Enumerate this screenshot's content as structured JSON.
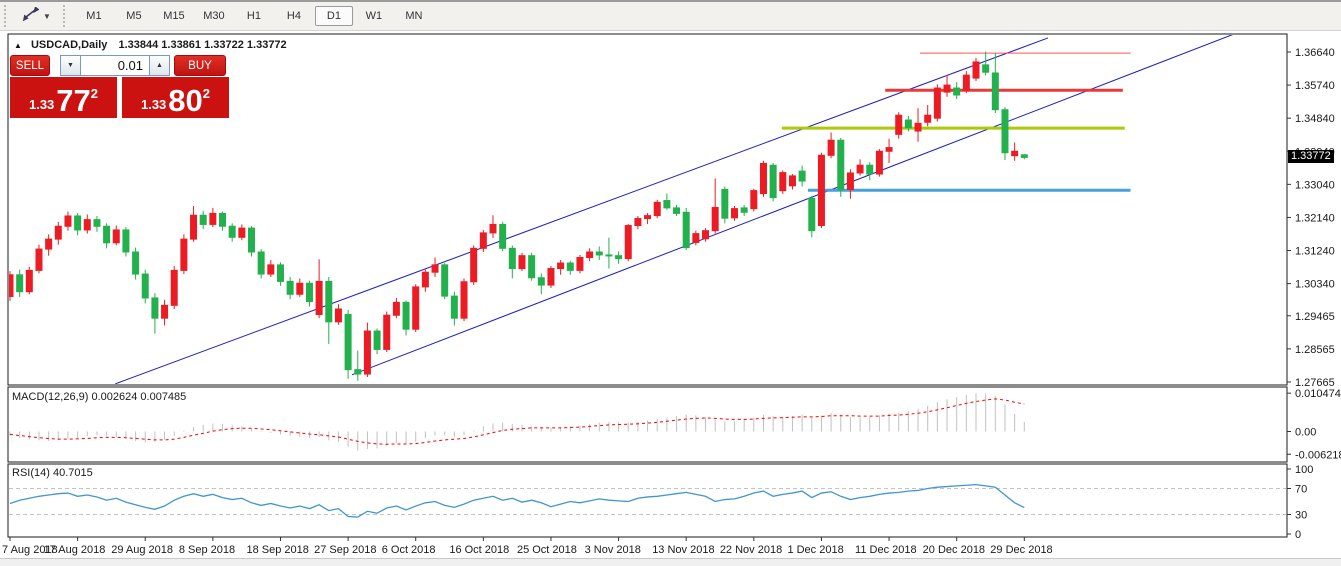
{
  "toolbar": {
    "tool_icon": "diagonal-arrows-icon",
    "dropdown_caret": "▾",
    "timeframes": [
      {
        "label": "M1",
        "selected": false
      },
      {
        "label": "M5",
        "selected": false
      },
      {
        "label": "M15",
        "selected": false
      },
      {
        "label": "M30",
        "selected": false
      },
      {
        "label": "H1",
        "selected": false
      },
      {
        "label": "H4",
        "selected": false
      },
      {
        "label": "D1",
        "selected": true
      },
      {
        "label": "W1",
        "selected": false
      },
      {
        "label": "MN",
        "selected": false
      }
    ]
  },
  "chart_header": {
    "collapse_triangle": "▲",
    "symbol": "USDCAD,Daily",
    "ohlc_text": "1.33844 1.33861 1.33722 1.33772",
    "open": "1.33844",
    "high": "1.33861",
    "low": "1.33722",
    "close": "1.33772"
  },
  "trade_panel": {
    "sell_label": "SELL",
    "buy_label": "BUY",
    "volume": "0.01",
    "spin_down_icon": "▼",
    "spin_up_icon": "▲",
    "sell_price_prefix": "1.33",
    "sell_price_big": "77",
    "sell_price_sup": "2",
    "buy_price_prefix": "1.33",
    "buy_price_big": "80",
    "buy_price_sup": "2",
    "button_color": "#cc1111"
  },
  "current_price_tag": "1.33772",
  "indicator_labels": {
    "macd": "MACD(12,26,9) 0.002624 0.007485",
    "rsi": "RSI(14) 40.7015"
  },
  "colors": {
    "bull": "#ec1c24",
    "bear": "#23b14d",
    "channel": "#1a1ac8",
    "hline_thin_red": "#ff5050",
    "hline_thick_red": "#e83a3a",
    "hline_yellow": "#aec80a",
    "hline_blue": "#46a0dc",
    "macd_hist": "#c0c0c0",
    "macd_signal": "#ff0000",
    "rsi_line": "#4195d1",
    "axis_text": "#1a1a1a",
    "panel_border": "#1a1a1a"
  },
  "chart_data": [
    {
      "type": "candlestick",
      "title": "USDCAD Daily",
      "y_ticks": [
        "1.36640",
        "1.35740",
        "1.34840",
        "1.33940",
        "1.33040",
        "1.32140",
        "1.31240",
        "1.30340",
        "1.29465",
        "1.28565",
        "1.27665"
      ],
      "ylim": [
        1.275,
        1.372
      ],
      "x_tick_labels": [
        "7 Aug 2018",
        "17 Aug 2018",
        "29 Aug 2018",
        "8 Sep 2018",
        "18 Sep 2018",
        "27 Sep 2018",
        "6 Oct 2018",
        "16 Oct 2018",
        "25 Oct 2018",
        "3 Nov 2018",
        "13 Nov 2018",
        "22 Nov 2018",
        "1 Dec 2018",
        "11 Dec 2018",
        "20 Dec 2018",
        "29 Dec 2018"
      ],
      "x_tick_bars": [
        0,
        7,
        14,
        21,
        28,
        35,
        42,
        49,
        56,
        63,
        70,
        77,
        84,
        91,
        98,
        105
      ],
      "candles": [
        [
          1.2999,
          1.3068,
          1.2987,
          1.3058
        ],
        [
          1.3058,
          1.3072,
          1.2998,
          1.3012
        ],
        [
          1.3012,
          1.308,
          1.3005,
          1.307
        ],
        [
          1.307,
          1.314,
          1.3062,
          1.3128
        ],
        [
          1.3128,
          1.3168,
          1.311,
          1.3155
        ],
        [
          1.3155,
          1.3202,
          1.314,
          1.319
        ],
        [
          1.319,
          1.323,
          1.3178,
          1.3218
        ],
        [
          1.3218,
          1.3226,
          1.3165,
          1.318
        ],
        [
          1.318,
          1.3222,
          1.317,
          1.3208
        ],
        [
          1.3208,
          1.3218,
          1.3175,
          1.319
        ],
        [
          1.319,
          1.3198,
          1.313,
          1.3145
        ],
        [
          1.3145,
          1.3192,
          1.3138,
          1.318
        ],
        [
          1.318,
          1.3188,
          1.3108,
          1.312
        ],
        [
          1.312,
          1.3132,
          1.3045,
          1.306
        ],
        [
          1.306,
          1.3072,
          1.298,
          1.2995
        ],
        [
          1.2995,
          1.3008,
          1.2898,
          1.294
        ],
        [
          1.294,
          1.299,
          1.292,
          1.2975
        ],
        [
          1.2975,
          1.3082,
          1.2965,
          1.307
        ],
        [
          1.307,
          1.3168,
          1.306,
          1.3155
        ],
        [
          1.3155,
          1.3245,
          1.3148,
          1.322
        ],
        [
          1.322,
          1.3232,
          1.3182,
          1.3195
        ],
        [
          1.3195,
          1.324,
          1.3188,
          1.3225
        ],
        [
          1.3225,
          1.323,
          1.3178,
          1.319
        ],
        [
          1.319,
          1.3198,
          1.3148,
          1.316
        ],
        [
          1.316,
          1.3195,
          1.3152,
          1.3185
        ],
        [
          1.3185,
          1.319,
          1.3108,
          1.312
        ],
        [
          1.312,
          1.3128,
          1.3048,
          1.306
        ],
        [
          1.306,
          1.3098,
          1.3052,
          1.3085
        ],
        [
          1.3085,
          1.3092,
          1.3028,
          1.304
        ],
        [
          1.304,
          1.3052,
          1.2992,
          1.3005
        ],
        [
          1.3005,
          1.3048,
          1.2998,
          1.3035
        ],
        [
          1.3035,
          1.3042,
          1.2972,
          1.2985
        ],
        [
          1.295,
          1.31,
          1.294,
          1.304
        ],
        [
          1.304,
          1.3052,
          1.287,
          1.293
        ],
        [
          1.293,
          1.2978,
          1.2922,
          1.2965
        ],
        [
          1.295,
          1.2962,
          1.2775,
          1.28
        ],
        [
          1.28,
          1.2852,
          1.277,
          1.2788
        ],
        [
          1.2788,
          1.2928,
          1.278,
          1.2905
        ],
        [
          1.2905,
          1.2912,
          1.2842,
          1.2855
        ],
        [
          1.2855,
          1.2958,
          1.2848,
          1.2948
        ],
        [
          1.2948,
          1.2995,
          1.294,
          1.2983
        ],
        [
          1.2983,
          1.2988,
          1.2893,
          1.291
        ],
        [
          1.291,
          1.3032,
          1.2902,
          1.3025
        ],
        [
          1.3025,
          1.3072,
          1.3012,
          1.3065
        ],
        [
          1.3065,
          1.3105,
          1.3052,
          1.3085
        ],
        [
          1.3085,
          1.309,
          1.2992,
          1.3
        ],
        [
          1.3,
          1.3012,
          1.292,
          1.294
        ],
        [
          1.294,
          1.3048,
          1.2932,
          1.3039
        ],
        [
          1.3039,
          1.3138,
          1.303,
          1.313
        ],
        [
          1.313,
          1.318,
          1.312,
          1.3172
        ],
        [
          1.3172,
          1.322,
          1.3158,
          1.3195
        ],
        [
          1.3195,
          1.3202,
          1.3122,
          1.313
        ],
        [
          1.313,
          1.3138,
          1.3048,
          1.3075
        ],
        [
          1.3075,
          1.3118,
          1.3068,
          1.311
        ],
        [
          1.311,
          1.3118,
          1.3042,
          1.305
        ],
        [
          1.305,
          1.3062,
          1.3005,
          1.303
        ],
        [
          1.303,
          1.3082,
          1.3022,
          1.3075
        ],
        [
          1.3075,
          1.3098,
          1.3058,
          1.309
        ],
        [
          1.309,
          1.3096,
          1.3058,
          1.307
        ],
        [
          1.307,
          1.3112,
          1.3062,
          1.3105
        ],
        [
          1.3105,
          1.313,
          1.3095,
          1.312
        ],
        [
          1.312,
          1.3135,
          1.3098,
          1.3112
        ],
        [
          1.3112,
          1.3159,
          1.3075,
          1.311
        ],
        [
          1.311,
          1.3122,
          1.3088,
          1.3102
        ],
        [
          1.3102,
          1.3196,
          1.3095,
          1.3192
        ],
        [
          1.3192,
          1.3218,
          1.3182,
          1.3211
        ],
        [
          1.3211,
          1.3226,
          1.3196,
          1.3219
        ],
        [
          1.3219,
          1.3262,
          1.3212,
          1.3255
        ],
        [
          1.326,
          1.3279,
          1.3235,
          1.324
        ],
        [
          1.324,
          1.3248,
          1.3218,
          1.3225
        ],
        [
          1.3228,
          1.324,
          1.3125,
          1.3132
        ],
        [
          1.3146,
          1.3178,
          1.3138,
          1.317
        ],
        [
          1.3156,
          1.3185,
          1.3148,
          1.3178
        ],
        [
          1.3178,
          1.332,
          1.317,
          1.3241
        ],
        [
          1.329,
          1.3298,
          1.3198,
          1.3212
        ],
        [
          1.3213,
          1.3245,
          1.3205,
          1.3238
        ],
        [
          1.324,
          1.3248,
          1.3218,
          1.3228
        ],
        [
          1.3238,
          1.3292,
          1.323,
          1.3287
        ],
        [
          1.3279,
          1.3368,
          1.327,
          1.3361
        ],
        [
          1.3356,
          1.3362,
          1.3258,
          1.3268
        ],
        [
          1.3287,
          1.3342,
          1.3278,
          1.3336
        ],
        [
          1.33,
          1.3332,
          1.329,
          1.3327
        ],
        [
          1.334,
          1.3355,
          1.3298,
          1.3313
        ],
        [
          1.3266,
          1.3272,
          1.316,
          1.3178
        ],
        [
          1.3192,
          1.339,
          1.3185,
          1.3383
        ],
        [
          1.3383,
          1.3445,
          1.3375,
          1.3424
        ],
        [
          1.3424,
          1.343,
          1.327,
          1.329
        ],
        [
          1.329,
          1.3345,
          1.3265,
          1.3335
        ],
        [
          1.3335,
          1.3372,
          1.3328,
          1.3356
        ],
        [
          1.3356,
          1.3364,
          1.3315,
          1.3332
        ],
        [
          1.3332,
          1.34,
          1.3325,
          1.3394
        ],
        [
          1.3394,
          1.3428,
          1.3362,
          1.3404
        ],
        [
          1.344,
          1.35,
          1.3428,
          1.3492
        ],
        [
          1.3479,
          1.349,
          1.3448,
          1.3458
        ],
        [
          1.3449,
          1.3511,
          1.342,
          1.347
        ],
        [
          1.3473,
          1.352,
          1.3462,
          1.3492
        ],
        [
          1.3484,
          1.3576,
          1.3475,
          1.3566
        ],
        [
          1.3555,
          1.3601,
          1.3542,
          1.3574
        ],
        [
          1.3566,
          1.3582,
          1.3536,
          1.3547
        ],
        [
          1.356,
          1.3612,
          1.3552,
          1.3601
        ],
        [
          1.3593,
          1.3648,
          1.3585,
          1.3637
        ],
        [
          1.3629,
          1.3665,
          1.36,
          1.3609
        ],
        [
          1.3607,
          1.366,
          1.3498,
          1.3507
        ],
        [
          1.3507,
          1.3514,
          1.337,
          1.339
        ],
        [
          1.3382,
          1.3418,
          1.3368,
          1.3394
        ],
        [
          1.33844,
          1.33861,
          1.33722,
          1.33772
        ]
      ],
      "overlays": {
        "trendlines": [
          {
            "name": "channel-upper",
            "bar1": 10.9,
            "price1": 1.27614,
            "bar2": 107.45,
            "price2": 1.37022
          },
          {
            "name": "channel-lower",
            "bar1": 35.4,
            "price1": 1.27859,
            "bar2": 127.0,
            "price2": 1.37158
          }
        ],
        "hlines": [
          {
            "name": "resistance-thin-red",
            "price": 1.3661,
            "bar1": 94.2,
            "bar2": 116.0,
            "color_key": "hline_thin_red",
            "width": 1
          },
          {
            "name": "resistance-thick-red",
            "price": 1.356,
            "bar1": 90.6,
            "bar2": 115.2,
            "color_key": "hline_thick_red",
            "width": 3
          },
          {
            "name": "support-yellow",
            "price": 1.3457,
            "bar1": 79.9,
            "bar2": 115.4,
            "color_key": "hline_yellow",
            "width": 3
          },
          {
            "name": "support-blue",
            "price": 1.3288,
            "bar1": 82.6,
            "bar2": 116.0,
            "color_key": "hline_blue",
            "width": 3
          }
        ]
      }
    },
    {
      "type": "bar",
      "title": "MACD(12,26,9)",
      "current_macd": 0.002624,
      "current_signal": 0.007485,
      "y_ticks": [
        "0.010474",
        "0.00",
        "-0.006218"
      ],
      "y_tick_values": [
        0.010474,
        0.0,
        -0.006218
      ],
      "hist": [
        -0.0012,
        -0.0018,
        -0.0022,
        -0.0024,
        -0.0026,
        -0.0024,
        -0.002,
        -0.0018,
        -0.0013,
        -0.001,
        -0.0012,
        -0.0016,
        -0.002,
        -0.0026,
        -0.003,
        -0.0028,
        -0.0022,
        -0.0012,
        0.0002,
        0.0012,
        0.0018,
        0.0022,
        0.0021,
        0.0018,
        0.0014,
        0.0008,
        0.0002,
        -0.0004,
        -0.0008,
        -0.0012,
        -0.0014,
        -0.0018,
        -0.0016,
        -0.0024,
        -0.0028,
        -0.0042,
        -0.0052,
        -0.0048,
        -0.0046,
        -0.0038,
        -0.0032,
        -0.0034,
        -0.0028,
        -0.0018,
        -0.001,
        -0.001,
        -0.0014,
        -0.001,
        0.0002,
        0.0014,
        0.0022,
        0.0024,
        0.002,
        0.0018,
        0.0014,
        0.0012,
        0.001,
        0.0012,
        0.0014,
        0.0016,
        0.002,
        0.0024,
        0.0026,
        0.0026,
        0.0024,
        0.0026,
        0.003,
        0.0034,
        0.0038,
        0.0042,
        0.0046,
        0.0044,
        0.004,
        0.0032,
        0.0028,
        0.0028,
        0.0032,
        0.0038,
        0.0046,
        0.0042,
        0.004,
        0.0042,
        0.0046,
        0.0038,
        0.0044,
        0.005,
        0.0046,
        0.004,
        0.0038,
        0.004,
        0.0044,
        0.005,
        0.0052,
        0.0056,
        0.0062,
        0.007,
        0.008,
        0.0088,
        0.0094,
        0.01,
        0.0104,
        0.0103,
        0.0098,
        0.0074,
        0.0048,
        0.0026
      ],
      "signal": [
        -0.0008,
        -0.0011,
        -0.0014,
        -0.0017,
        -0.0019,
        -0.0021,
        -0.0021,
        -0.002,
        -0.0019,
        -0.0017,
        -0.0016,
        -0.0016,
        -0.0017,
        -0.0019,
        -0.0021,
        -0.0023,
        -0.0023,
        -0.0021,
        -0.0016,
        -0.001,
        -0.0005,
        0.0001,
        0.0005,
        0.0008,
        0.0009,
        0.0009,
        0.0007,
        0.0005,
        0.0002,
        -0.0001,
        -0.0004,
        -0.0007,
        -0.0009,
        -0.0012,
        -0.0015,
        -0.0021,
        -0.0027,
        -0.0031,
        -0.0034,
        -0.0035,
        -0.0034,
        -0.0034,
        -0.0033,
        -0.003,
        -0.0026,
        -0.0023,
        -0.0021,
        -0.0019,
        -0.0015,
        -0.0009,
        -0.0003,
        0.0003,
        0.0006,
        0.0008,
        0.001,
        0.001,
        0.001,
        0.001,
        0.0011,
        0.0012,
        0.0014,
        0.0016,
        0.0018,
        0.0019,
        0.002,
        0.0021,
        0.0023,
        0.0025,
        0.0028,
        0.0031,
        0.0034,
        0.0036,
        0.0037,
        0.0036,
        0.0034,
        0.0033,
        0.0033,
        0.0034,
        0.0036,
        0.0037,
        0.0038,
        0.0039,
        0.004,
        0.004,
        0.0041,
        0.0043,
        0.0043,
        0.0043,
        0.0042,
        0.0042,
        0.0042,
        0.0044,
        0.0045,
        0.0047,
        0.005,
        0.0054,
        0.0059,
        0.0065,
        0.0071,
        0.0077,
        0.0082,
        0.0086,
        0.0089,
        0.0086,
        0.008,
        0.0075
      ]
    },
    {
      "type": "line",
      "title": "RSI(14)",
      "current_value": 40.7015,
      "y_ticks": [
        "100",
        "70",
        "30",
        "0"
      ],
      "y_tick_values": [
        100,
        70,
        30,
        0
      ],
      "levels": [
        70,
        30
      ],
      "values": [
        47,
        52,
        55,
        58,
        60,
        62,
        63,
        58,
        60,
        57,
        52,
        55,
        49,
        45,
        41,
        38,
        43,
        52,
        58,
        62,
        58,
        61,
        56,
        53,
        55,
        48,
        44,
        47,
        43,
        40,
        43,
        39,
        45,
        36,
        39,
        27,
        26,
        35,
        32,
        40,
        43,
        37,
        43,
        48,
        50,
        44,
        41,
        46,
        52,
        55,
        58,
        52,
        55,
        49,
        52,
        48,
        42,
        46,
        50,
        48,
        51,
        54,
        52,
        51,
        50,
        55,
        57,
        58,
        60,
        62,
        64,
        61,
        58,
        50,
        53,
        54,
        58,
        63,
        66,
        58,
        61,
        63,
        66,
        56,
        63,
        65,
        58,
        53,
        56,
        58,
        61,
        63,
        64,
        66,
        67,
        70,
        72,
        73,
        74,
        75,
        76,
        74,
        72,
        60,
        48,
        40.7
      ]
    }
  ]
}
